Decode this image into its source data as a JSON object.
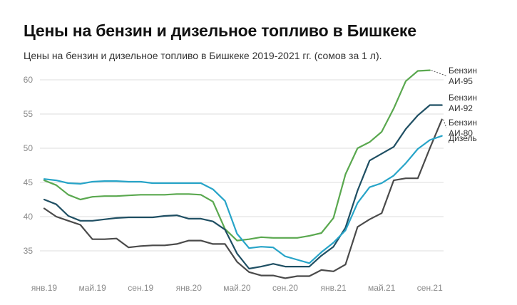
{
  "header": {
    "title": "Цены на бензин и дизельное топливо в Бишкеке",
    "subtitle": "Цены на бензин и дизельное топливо в Бишкеке 2019-2021 гг. (сомов за 1 л)."
  },
  "chart_data": {
    "type": "line",
    "title": "Цены на бензин и дизельное топливо в Бишкеке",
    "subtitle": "Цены на бензин и дизельное топливо в Бишкеке 2019-2021 гг. (сомов за 1 л).",
    "xlabel": "",
    "ylabel": "",
    "ylim": [
      30,
      62
    ],
    "yticks": [
      35,
      40,
      45,
      50,
      55,
      60
    ],
    "grid": true,
    "x": [
      "2019-01",
      "2019-02",
      "2019-03",
      "2019-04",
      "2019-05",
      "2019-06",
      "2019-07",
      "2019-08",
      "2019-09",
      "2019-10",
      "2019-11",
      "2019-12",
      "2020-01",
      "2020-02",
      "2020-03",
      "2020-04",
      "2020-05",
      "2020-06",
      "2020-07",
      "2020-08",
      "2020-09",
      "2020-10",
      "2020-11",
      "2020-12",
      "2021-01",
      "2021-02",
      "2021-03",
      "2021-04",
      "2021-05",
      "2021-06",
      "2021-07",
      "2021-08",
      "2021-09",
      "2021-10"
    ],
    "xticks": [
      {
        "x": "2019-01",
        "label": "янв.19"
      },
      {
        "x": "2019-05",
        "label": "май.19"
      },
      {
        "x": "2019-09",
        "label": "сен.19"
      },
      {
        "x": "2020-01",
        "label": "янв.20"
      },
      {
        "x": "2020-05",
        "label": "май.20"
      },
      {
        "x": "2020-09",
        "label": "сен.20"
      },
      {
        "x": "2021-01",
        "label": "янв.21"
      },
      {
        "x": "2021-05",
        "label": "май.21"
      },
      {
        "x": "2021-09",
        "label": "сен.21"
      }
    ],
    "series": [
      {
        "name": "Бензин АИ-95",
        "color": "#5aa84f",
        "values": [
          45.3,
          44.6,
          43.2,
          42.5,
          42.9,
          43.0,
          43.0,
          43.1,
          43.2,
          43.2,
          43.2,
          43.3,
          43.3,
          43.2,
          42.2,
          38.2,
          36.5,
          36.7,
          37.0,
          36.9,
          36.9,
          36.9,
          37.2,
          37.6,
          39.8,
          46.2,
          50.0,
          50.9,
          52.4,
          55.8,
          59.8,
          61.3,
          61.4,
          null
        ]
      },
      {
        "name": "Бензин АИ-92",
        "color": "#1f4f63",
        "values": [
          42.5,
          41.8,
          40.1,
          39.4,
          39.4,
          39.6,
          39.8,
          39.9,
          39.9,
          39.9,
          40.1,
          40.2,
          39.7,
          39.7,
          39.3,
          38.1,
          34.6,
          32.4,
          32.7,
          33.1,
          32.7,
          32.7,
          32.7,
          34.3,
          35.6,
          38.4,
          43.8,
          48.2,
          49.2,
          50.2,
          52.8,
          54.8,
          56.3,
          56.3
        ]
      },
      {
        "name": "Бензин АИ-80",
        "color": "#4a4a4a",
        "values": [
          41.2,
          40.0,
          39.4,
          38.8,
          36.7,
          36.7,
          36.8,
          35.5,
          35.7,
          35.8,
          35.8,
          36.0,
          36.5,
          36.5,
          36.0,
          36.0,
          33.4,
          31.9,
          31.4,
          31.4,
          31.0,
          31.3,
          31.3,
          32.2,
          32.0,
          33.0,
          38.5,
          39.6,
          40.5,
          45.3,
          45.6,
          45.6,
          50.0,
          54.2
        ]
      },
      {
        "name": "Дизель",
        "color": "#27a4c8",
        "values": [
          45.5,
          45.3,
          44.9,
          44.8,
          45.1,
          45.2,
          45.2,
          45.1,
          45.1,
          44.9,
          44.9,
          44.9,
          44.9,
          44.9,
          44.0,
          42.3,
          37.5,
          35.4,
          35.6,
          35.5,
          34.2,
          33.7,
          33.2,
          34.8,
          36.2,
          38.0,
          42.0,
          44.3,
          44.9,
          46.0,
          47.8,
          49.9,
          51.2,
          51.8
        ]
      }
    ],
    "legend": {
      "placement": "right-end",
      "entries": [
        {
          "lines": [
            "Бензин",
            "АИ-95"
          ],
          "color": "#5aa84f"
        },
        {
          "lines": [
            "Бензин",
            "АИ-92"
          ],
          "color": "#1f4f63"
        },
        {
          "lines": [
            "Бензин",
            "АИ-80"
          ],
          "color": "#4a4a4a"
        },
        {
          "lines": [
            "Дизель"
          ],
          "color": "#27a4c8"
        }
      ]
    }
  }
}
